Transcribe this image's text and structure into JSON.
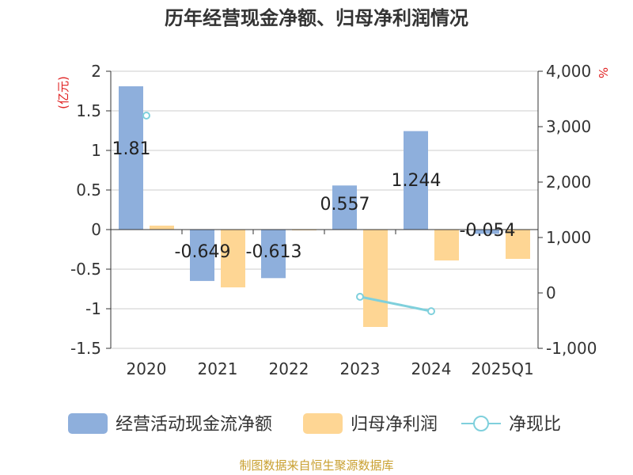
{
  "chart_data": {
    "type": "bar",
    "title": "历年经营现金净额、归母净利润情况",
    "left_unit": "(亿元)",
    "right_unit": "%",
    "categories": [
      "2020",
      "2021",
      "2022",
      "2023",
      "2024",
      "2025Q1"
    ],
    "left_ylim": [
      -1.5,
      2
    ],
    "left_ticks": [
      "2",
      "1.5",
      "1",
      "0.5",
      "0",
      "-0.5",
      "-1",
      "-1.5"
    ],
    "right_ylim": [
      -1000,
      4000
    ],
    "right_ticks": [
      "4,000",
      "3,000",
      "2,000",
      "1,000",
      "0",
      "-1,000"
    ],
    "series": [
      {
        "name": "经营活动现金流净额",
        "kind": "bar",
        "axis": "left",
        "color": "#8eafdc",
        "values": [
          1.81,
          -0.649,
          -0.613,
          0.557,
          1.244,
          -0.054
        ],
        "labels": [
          "1.81",
          "-0.649",
          "-0.613",
          "0.557",
          "1.244",
          "-0.054"
        ]
      },
      {
        "name": "归母净利润",
        "kind": "bar",
        "axis": "left",
        "color": "#fed694",
        "values": [
          0.05,
          -0.73,
          -0.01,
          -1.23,
          -0.39,
          -0.37
        ]
      },
      {
        "name": "净现比",
        "kind": "line",
        "axis": "right",
        "color": "#7fd0dc",
        "values": [
          3200,
          null,
          null,
          -70,
          -330,
          null
        ]
      }
    ],
    "source": "制图数据来自恒生聚源数据库"
  }
}
